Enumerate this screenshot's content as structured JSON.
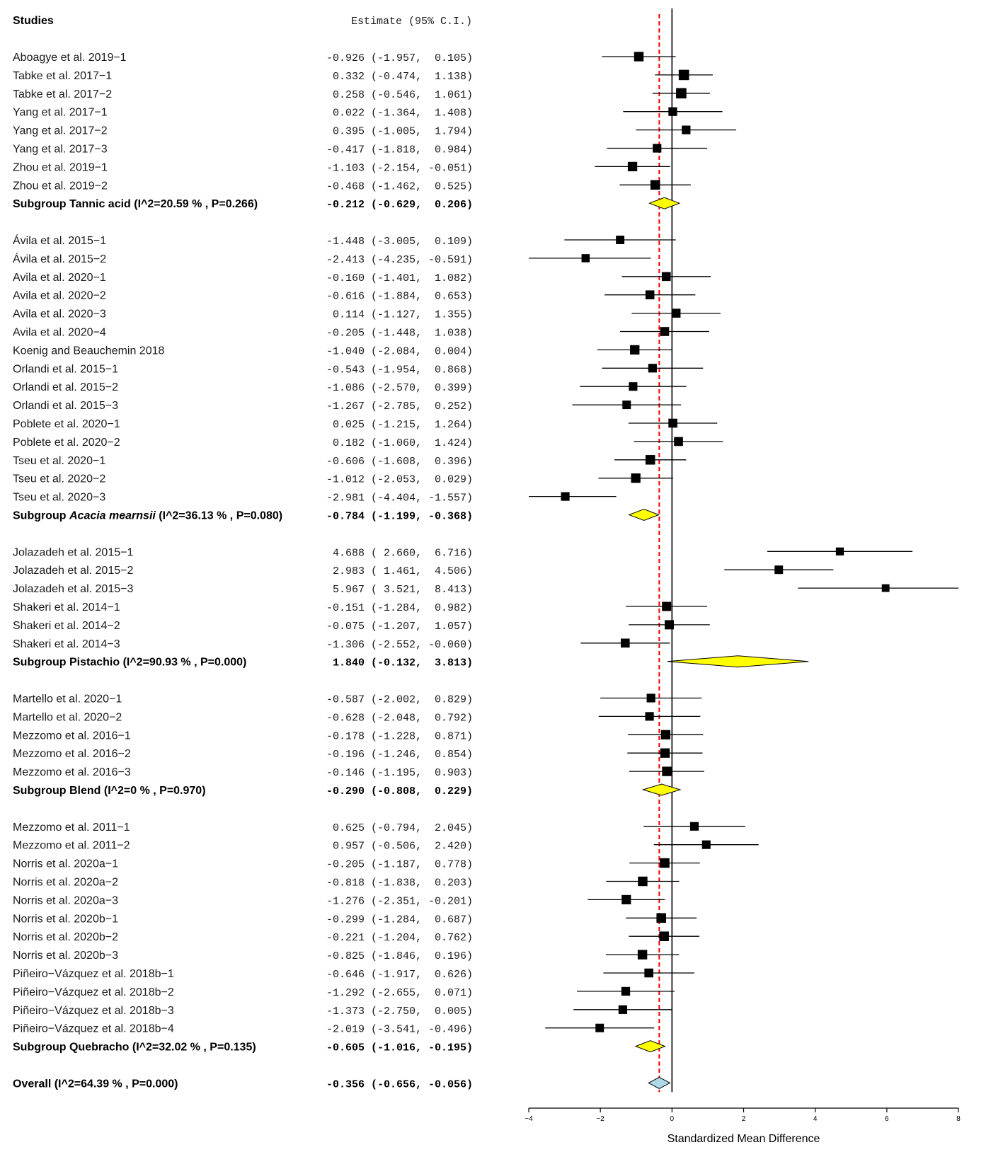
{
  "header": {
    "studies_label": "Studies",
    "estimate_label": "Estimate (95% C.I.)"
  },
  "chart_data": {
    "type": "forest",
    "xlabel": "Standardized Mean Difference",
    "xlim": [
      -4,
      8
    ],
    "xticks": [
      -4,
      -2,
      0,
      2,
      4,
      6,
      8
    ],
    "null_line": 0,
    "overall_reference_line": -0.356,
    "colors": {
      "subgroup_diamond": "#ffff00",
      "overall_diamond": "#add8e6",
      "reference_line": "#ff0000",
      "marks": "#000000"
    },
    "rows": [
      {
        "kind": "study",
        "label": "Aboagye et al. 2019−1",
        "est": -0.926,
        "lo": -1.957,
        "hi": 0.105,
        "text": "-0.926 (-1.957,  0.105)"
      },
      {
        "kind": "study",
        "label": "Tabke et al. 2017−1",
        "est": 0.332,
        "lo": -0.474,
        "hi": 1.138,
        "text": " 0.332 (-0.474,  1.138)"
      },
      {
        "kind": "study",
        "label": "Tabke et al. 2017−2",
        "est": 0.258,
        "lo": -0.546,
        "hi": 1.061,
        "text": " 0.258 (-0.546,  1.061)"
      },
      {
        "kind": "study",
        "label": "Yang et al. 2017−1",
        "est": 0.022,
        "lo": -1.364,
        "hi": 1.408,
        "text": " 0.022 (-1.364,  1.408)"
      },
      {
        "kind": "study",
        "label": "Yang et al. 2017−2",
        "est": 0.395,
        "lo": -1.005,
        "hi": 1.794,
        "text": " 0.395 (-1.005,  1.794)"
      },
      {
        "kind": "study",
        "label": "Yang et al. 2017−3",
        "est": -0.417,
        "lo": -1.818,
        "hi": 0.984,
        "text": "-0.417 (-1.818,  0.984)"
      },
      {
        "kind": "study",
        "label": "Zhou et al. 2019−1",
        "est": -1.103,
        "lo": -2.154,
        "hi": -0.051,
        "text": "-1.103 (-2.154, -0.051)"
      },
      {
        "kind": "study",
        "label": "Zhou et al. 2019−2",
        "est": -0.468,
        "lo": -1.462,
        "hi": 0.525,
        "text": "-0.468 (-1.462,  0.525)"
      },
      {
        "kind": "subgroup",
        "label": "Subgroup Tannic acid (I^2=20.59 % , P=0.266)",
        "est": -0.212,
        "lo": -0.629,
        "hi": 0.206,
        "text": "-0.212 (-0.629,  0.206)"
      },
      {
        "kind": "gap"
      },
      {
        "kind": "study",
        "label": "Ávila et al. 2015−1",
        "est": -1.448,
        "lo": -3.005,
        "hi": 0.109,
        "text": "-1.448 (-3.005,  0.109)"
      },
      {
        "kind": "study",
        "label": "Ávila et al. 2015−2",
        "est": -2.413,
        "lo": -4.235,
        "hi": -0.591,
        "text": "-2.413 (-4.235, -0.591)"
      },
      {
        "kind": "study",
        "label": "Avila et al. 2020−1",
        "est": -0.16,
        "lo": -1.401,
        "hi": 1.082,
        "text": "-0.160 (-1.401,  1.082)"
      },
      {
        "kind": "study",
        "label": "Avila et al. 2020−2",
        "est": -0.616,
        "lo": -1.884,
        "hi": 0.653,
        "text": "-0.616 (-1.884,  0.653)"
      },
      {
        "kind": "study",
        "label": "Avila et al. 2020−3",
        "est": 0.114,
        "lo": -1.127,
        "hi": 1.355,
        "text": " 0.114 (-1.127,  1.355)"
      },
      {
        "kind": "study",
        "label": "Avila et al. 2020−4",
        "est": -0.205,
        "lo": -1.448,
        "hi": 1.038,
        "text": "-0.205 (-1.448,  1.038)"
      },
      {
        "kind": "study",
        "label": "Koenig and Beauchemin 2018",
        "est": -1.04,
        "lo": -2.084,
        "hi": 0.004,
        "text": "-1.040 (-2.084,  0.004)"
      },
      {
        "kind": "study",
        "label": "Orlandi et al. 2015−1",
        "est": -0.543,
        "lo": -1.954,
        "hi": 0.868,
        "text": "-0.543 (-1.954,  0.868)"
      },
      {
        "kind": "study",
        "label": "Orlandi et al. 2015−2",
        "est": -1.086,
        "lo": -2.57,
        "hi": 0.399,
        "text": "-1.086 (-2.570,  0.399)"
      },
      {
        "kind": "study",
        "label": "Orlandi et al. 2015−3",
        "est": -1.267,
        "lo": -2.785,
        "hi": 0.252,
        "text": "-1.267 (-2.785,  0.252)"
      },
      {
        "kind": "study",
        "label": "Poblete et al. 2020−1",
        "est": 0.025,
        "lo": -1.215,
        "hi": 1.264,
        "text": " 0.025 (-1.215,  1.264)"
      },
      {
        "kind": "study",
        "label": "Poblete et al. 2020−2",
        "est": 0.182,
        "lo": -1.06,
        "hi": 1.424,
        "text": " 0.182 (-1.060,  1.424)"
      },
      {
        "kind": "study",
        "label": "Tseu et al. 2020−1",
        "est": -0.606,
        "lo": -1.608,
        "hi": 0.396,
        "text": "-0.606 (-1.608,  0.396)"
      },
      {
        "kind": "study",
        "label": "Tseu et al. 2020−2",
        "est": -1.012,
        "lo": -2.053,
        "hi": 0.029,
        "text": "-1.012 (-2.053,  0.029)"
      },
      {
        "kind": "study",
        "label": "Tseu et al. 2020−3",
        "est": -2.981,
        "lo": -4.404,
        "hi": -1.557,
        "text": "-2.981 (-4.404, -1.557)"
      },
      {
        "kind": "subgroup",
        "label": "Subgroup ",
        "label_italic": "Acacia mearnsii",
        "label_suffix": " (I^2=36.13 % , P=0.080)",
        "est": -0.784,
        "lo": -1.199,
        "hi": -0.368,
        "text": "-0.784 (-1.199, -0.368)"
      },
      {
        "kind": "gap"
      },
      {
        "kind": "study",
        "label": "Jolazadeh et al. 2015−1",
        "est": 4.688,
        "lo": 2.66,
        "hi": 6.716,
        "text": " 4.688 ( 2.660,  6.716)"
      },
      {
        "kind": "study",
        "label": "Jolazadeh et al. 2015−2",
        "est": 2.983,
        "lo": 1.461,
        "hi": 4.506,
        "text": " 2.983 ( 1.461,  4.506)"
      },
      {
        "kind": "study",
        "label": "Jolazadeh et al. 2015−3",
        "est": 5.967,
        "lo": 3.521,
        "hi": 8.413,
        "text": " 5.967 ( 3.521,  8.413)"
      },
      {
        "kind": "study",
        "label": "Shakeri et al. 2014−1",
        "est": -0.151,
        "lo": -1.284,
        "hi": 0.982,
        "text": "-0.151 (-1.284,  0.982)"
      },
      {
        "kind": "study",
        "label": "Shakeri et al. 2014−2",
        "est": -0.075,
        "lo": -1.207,
        "hi": 1.057,
        "text": "-0.075 (-1.207,  1.057)"
      },
      {
        "kind": "study",
        "label": "Shakeri et al. 2014−3",
        "est": -1.306,
        "lo": -2.552,
        "hi": -0.06,
        "text": "-1.306 (-2.552, -0.060)"
      },
      {
        "kind": "subgroup",
        "label": "Subgroup Pistachio (I^2=90.93 % , P=0.000)",
        "est": 1.84,
        "lo": -0.132,
        "hi": 3.813,
        "text": " 1.840 (-0.132,  3.813)"
      },
      {
        "kind": "gap"
      },
      {
        "kind": "study",
        "label": "Martello et al. 2020−1",
        "est": -0.587,
        "lo": -2.002,
        "hi": 0.829,
        "text": "-0.587 (-2.002,  0.829)"
      },
      {
        "kind": "study",
        "label": "Martello et al. 2020−2",
        "est": -0.628,
        "lo": -2.048,
        "hi": 0.792,
        "text": "-0.628 (-2.048,  0.792)"
      },
      {
        "kind": "study",
        "label": "Mezzomo et al. 2016−1",
        "est": -0.178,
        "lo": -1.228,
        "hi": 0.871,
        "text": "-0.178 (-1.228,  0.871)"
      },
      {
        "kind": "study",
        "label": "Mezzomo et al. 2016−2",
        "est": -0.196,
        "lo": -1.246,
        "hi": 0.854,
        "text": "-0.196 (-1.246,  0.854)"
      },
      {
        "kind": "study",
        "label": "Mezzomo et al. 2016−3",
        "est": -0.146,
        "lo": -1.195,
        "hi": 0.903,
        "text": "-0.146 (-1.195,  0.903)"
      },
      {
        "kind": "subgroup",
        "label": "Subgroup Blend (I^2=0 % , P=0.970)",
        "est": -0.29,
        "lo": -0.808,
        "hi": 0.229,
        "text": "-0.290 (-0.808,  0.229)"
      },
      {
        "kind": "gap"
      },
      {
        "kind": "study",
        "label": "Mezzomo et al. 2011−1",
        "est": 0.625,
        "lo": -0.794,
        "hi": 2.045,
        "text": " 0.625 (-0.794,  2.045)"
      },
      {
        "kind": "study",
        "label": "Mezzomo et al. 2011−2",
        "est": 0.957,
        "lo": -0.506,
        "hi": 2.42,
        "text": " 0.957 (-0.506,  2.420)"
      },
      {
        "kind": "study",
        "label": "Norris et al. 2020a−1",
        "est": -0.205,
        "lo": -1.187,
        "hi": 0.778,
        "text": "-0.205 (-1.187,  0.778)"
      },
      {
        "kind": "study",
        "label": "Norris et al. 2020a−2",
        "est": -0.818,
        "lo": -1.838,
        "hi": 0.203,
        "text": "-0.818 (-1.838,  0.203)"
      },
      {
        "kind": "study",
        "label": "Norris et al. 2020a−3",
        "est": -1.276,
        "lo": -2.351,
        "hi": -0.201,
        "text": "-1.276 (-2.351, -0.201)"
      },
      {
        "kind": "study",
        "label": "Norris et al. 2020b−1",
        "est": -0.299,
        "lo": -1.284,
        "hi": 0.687,
        "text": "-0.299 (-1.284,  0.687)"
      },
      {
        "kind": "study",
        "label": "Norris et al. 2020b−2",
        "est": -0.221,
        "lo": -1.204,
        "hi": 0.762,
        "text": "-0.221 (-1.204,  0.762)"
      },
      {
        "kind": "study",
        "label": "Norris et al. 2020b−3",
        "est": -0.825,
        "lo": -1.846,
        "hi": 0.196,
        "text": "-0.825 (-1.846,  0.196)"
      },
      {
        "kind": "study",
        "label": "Piñeiro−Vázquez et al. 2018b−1",
        "est": -0.646,
        "lo": -1.917,
        "hi": 0.626,
        "text": "-0.646 (-1.917,  0.626)"
      },
      {
        "kind": "study",
        "label": "Piñeiro−Vázquez et al. 2018b−2",
        "est": -1.292,
        "lo": -2.655,
        "hi": 0.071,
        "text": "-1.292 (-2.655,  0.071)"
      },
      {
        "kind": "study",
        "label": "Piñeiro−Vázquez et al. 2018b−3",
        "est": -1.373,
        "lo": -2.75,
        "hi": 0.005,
        "text": "-1.373 (-2.750,  0.005)"
      },
      {
        "kind": "study",
        "label": "Piñeiro−Vázquez et al. 2018b−4",
        "est": -2.019,
        "lo": -3.541,
        "hi": -0.496,
        "text": "-2.019 (-3.541, -0.496)"
      },
      {
        "kind": "subgroup",
        "label": "Subgroup Quebracho (I^2=32.02 % , P=0.135)",
        "est": -0.605,
        "lo": -1.016,
        "hi": -0.195,
        "text": "-0.605 (-1.016, -0.195)"
      },
      {
        "kind": "gap"
      },
      {
        "kind": "overall",
        "label": "Overall (I^2=64.39 % , P=0.000)",
        "est": -0.356,
        "lo": -0.656,
        "hi": -0.056,
        "text": "-0.356 (-0.656, -0.056)"
      }
    ]
  }
}
